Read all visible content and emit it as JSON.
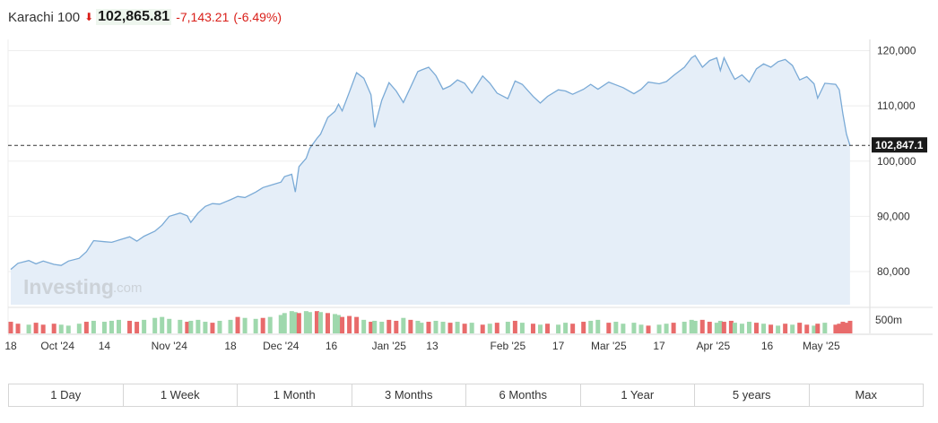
{
  "header": {
    "name": "Karachi 100",
    "price": "102,865.81",
    "change": "-7,143.21",
    "change_pct": "(-6.49%)",
    "arrow_icon": "down-arrow-icon"
  },
  "current_label": "102,847.1",
  "watermark": {
    "brand": "Investing",
    "suffix": ".com"
  },
  "volume_label": "500m",
  "tabs": [
    "1 Day",
    "1 Week",
    "1 Month",
    "3 Months",
    "6 Months",
    "1 Year",
    "5 years",
    "Max"
  ],
  "colors": {
    "line": "#7aaad6",
    "area": "#e5eef8",
    "up": "#9fd8ad",
    "down": "#e86b6b",
    "negative": "#d91e18"
  },
  "chart_data": {
    "type": "area",
    "ylim": [
      74000,
      123000
    ],
    "y_ticks": [
      80000,
      90000,
      100000,
      110000,
      120000
    ],
    "y_tick_labels": [
      "80,000",
      "90,000",
      "100,000",
      "110,000",
      "120,000"
    ],
    "current_value": 102847.1,
    "x_start": "2024-09-18",
    "x_end": "2025-05-12",
    "x_ticks": [
      {
        "date": "2024-09-18",
        "label": "18"
      },
      {
        "date": "2024-10-01",
        "label": "Oct '24"
      },
      {
        "date": "2024-10-14",
        "label": "14"
      },
      {
        "date": "2024-11-01",
        "label": "Nov '24"
      },
      {
        "date": "2024-11-18",
        "label": "18"
      },
      {
        "date": "2024-12-02",
        "label": "Dec '24"
      },
      {
        "date": "2024-12-16",
        "label": "16"
      },
      {
        "date": "2025-01-01",
        "label": "Jan '25"
      },
      {
        "date": "2025-01-13",
        "label": "13"
      },
      {
        "date": "2025-02-03",
        "label": "Feb '25"
      },
      {
        "date": "2025-02-17",
        "label": "17"
      },
      {
        "date": "2025-03-03",
        "label": "Mar '25"
      },
      {
        "date": "2025-03-17",
        "label": "17"
      },
      {
        "date": "2025-04-01",
        "label": "Apr '25"
      },
      {
        "date": "2025-04-16",
        "label": "16"
      },
      {
        "date": "2025-05-01",
        "label": "May '25"
      }
    ],
    "series": [
      {
        "values": [
          [
            "2024-09-18",
            80400
          ],
          [
            "2024-09-20",
            81500
          ],
          [
            "2024-09-23",
            82000
          ],
          [
            "2024-09-25",
            81400
          ],
          [
            "2024-09-27",
            81900
          ],
          [
            "2024-09-30",
            81300
          ],
          [
            "2024-10-02",
            81100
          ],
          [
            "2024-10-04",
            81900
          ],
          [
            "2024-10-07",
            82400
          ],
          [
            "2024-10-09",
            83600
          ],
          [
            "2024-10-11",
            85600
          ],
          [
            "2024-10-14",
            85400
          ],
          [
            "2024-10-16",
            85300
          ],
          [
            "2024-10-18",
            85700
          ],
          [
            "2024-10-21",
            86300
          ],
          [
            "2024-10-23",
            85500
          ],
          [
            "2024-10-25",
            86400
          ],
          [
            "2024-10-28",
            87300
          ],
          [
            "2024-10-30",
            88400
          ],
          [
            "2024-11-01",
            90000
          ],
          [
            "2024-11-04",
            90600
          ],
          [
            "2024-11-06",
            90100
          ],
          [
            "2024-11-07",
            88900
          ],
          [
            "2024-11-09",
            90600
          ],
          [
            "2024-11-11",
            91800
          ],
          [
            "2024-11-13",
            92300
          ],
          [
            "2024-11-15",
            92200
          ],
          [
            "2024-11-18",
            93000
          ],
          [
            "2024-11-20",
            93600
          ],
          [
            "2024-11-22",
            93400
          ],
          [
            "2024-11-25",
            94400
          ],
          [
            "2024-11-27",
            95200
          ],
          [
            "2024-11-29",
            95600
          ],
          [
            "2024-12-02",
            96200
          ],
          [
            "2024-12-03",
            97200
          ],
          [
            "2024-12-05",
            97600
          ],
          [
            "2024-12-06",
            94400
          ],
          [
            "2024-12-07",
            99000
          ],
          [
            "2024-12-09",
            100500
          ],
          [
            "2024-12-10",
            102300
          ],
          [
            "2024-12-12",
            104100
          ],
          [
            "2024-12-13",
            104900
          ],
          [
            "2024-12-15",
            107900
          ],
          [
            "2024-12-17",
            109000
          ],
          [
            "2024-12-18",
            110300
          ],
          [
            "2024-12-19",
            109100
          ],
          [
            "2024-12-21",
            112500
          ],
          [
            "2024-12-23",
            116000
          ],
          [
            "2024-12-25",
            115000
          ],
          [
            "2024-12-27",
            112000
          ],
          [
            "2024-12-28",
            106100
          ],
          [
            "2024-12-30",
            111000
          ],
          [
            "2025-01-01",
            114200
          ],
          [
            "2025-01-03",
            112700
          ],
          [
            "2025-01-05",
            110600
          ],
          [
            "2025-01-07",
            113400
          ],
          [
            "2025-01-09",
            116200
          ],
          [
            "2025-01-10",
            116500
          ],
          [
            "2025-01-12",
            117000
          ],
          [
            "2025-01-14",
            115500
          ],
          [
            "2025-01-16",
            113000
          ],
          [
            "2025-01-18",
            113600
          ],
          [
            "2025-01-20",
            114700
          ],
          [
            "2025-01-22",
            114100
          ],
          [
            "2025-01-24",
            112300
          ],
          [
            "2025-01-27",
            115400
          ],
          [
            "2025-01-29",
            114100
          ],
          [
            "2025-01-31",
            112300
          ],
          [
            "2025-02-03",
            111300
          ],
          [
            "2025-02-05",
            114500
          ],
          [
            "2025-02-07",
            113900
          ],
          [
            "2025-02-10",
            111700
          ],
          [
            "2025-02-12",
            110500
          ],
          [
            "2025-02-14",
            111700
          ],
          [
            "2025-02-17",
            112900
          ],
          [
            "2025-02-19",
            112700
          ],
          [
            "2025-02-21",
            112100
          ],
          [
            "2025-02-24",
            113000
          ],
          [
            "2025-02-26",
            113900
          ],
          [
            "2025-02-28",
            113000
          ],
          [
            "2025-03-03",
            114300
          ],
          [
            "2025-03-05",
            113800
          ],
          [
            "2025-03-07",
            113300
          ],
          [
            "2025-03-10",
            112200
          ],
          [
            "2025-03-12",
            113000
          ],
          [
            "2025-03-14",
            114300
          ],
          [
            "2025-03-17",
            114000
          ],
          [
            "2025-03-19",
            114400
          ],
          [
            "2025-03-21",
            115500
          ],
          [
            "2025-03-24",
            117000
          ],
          [
            "2025-03-26",
            118700
          ],
          [
            "2025-03-27",
            119100
          ],
          [
            "2025-03-29",
            117000
          ],
          [
            "2025-03-31",
            118200
          ],
          [
            "2025-04-02",
            118700
          ],
          [
            "2025-04-03",
            116400
          ],
          [
            "2025-04-04",
            118700
          ],
          [
            "2025-04-06",
            116000
          ],
          [
            "2025-04-07",
            114800
          ],
          [
            "2025-04-09",
            115600
          ],
          [
            "2025-04-11",
            114300
          ],
          [
            "2025-04-13",
            116700
          ],
          [
            "2025-04-15",
            117600
          ],
          [
            "2025-04-17",
            117000
          ],
          [
            "2025-04-19",
            118000
          ],
          [
            "2025-04-21",
            118400
          ],
          [
            "2025-04-23",
            117300
          ],
          [
            "2025-04-25",
            114700
          ],
          [
            "2025-04-27",
            115300
          ],
          [
            "2025-04-29",
            114000
          ],
          [
            "2025-04-30",
            111400
          ],
          [
            "2025-05-02",
            114100
          ],
          [
            "2025-05-05",
            113900
          ],
          [
            "2025-05-06",
            112900
          ],
          [
            "2025-05-07",
            108600
          ],
          [
            "2025-05-08",
            104900
          ],
          [
            "2025-05-09",
            102800
          ]
        ]
      }
    ],
    "volume": [
      [
        "2024-09-18",
        12,
        "down"
      ],
      [
        "2024-09-20",
        10,
        "down"
      ],
      [
        "2024-09-23",
        9,
        "up"
      ],
      [
        "2024-09-25",
        11,
        "down"
      ],
      [
        "2024-09-27",
        9,
        "down"
      ],
      [
        "2024-09-30",
        10,
        "down"
      ],
      [
        "2024-10-02",
        9,
        "up"
      ],
      [
        "2024-10-04",
        8,
        "up"
      ],
      [
        "2024-10-07",
        10,
        "up"
      ],
      [
        "2024-10-09",
        12,
        "down"
      ],
      [
        "2024-10-11",
        13,
        "up"
      ],
      [
        "2024-10-14",
        12,
        "up"
      ],
      [
        "2024-10-16",
        13,
        "up"
      ],
      [
        "2024-10-18",
        14,
        "up"
      ],
      [
        "2024-10-21",
        13,
        "down"
      ],
      [
        "2024-10-23",
        12,
        "down"
      ],
      [
        "2024-10-25",
        14,
        "up"
      ],
      [
        "2024-10-28",
        16,
        "up"
      ],
      [
        "2024-10-30",
        17,
        "up"
      ],
      [
        "2024-11-01",
        15,
        "up"
      ],
      [
        "2024-11-04",
        14,
        "up"
      ],
      [
        "2024-11-06",
        12,
        "down"
      ],
      [
        "2024-11-07",
        13,
        "up"
      ],
      [
        "2024-11-09",
        14,
        "up"
      ],
      [
        "2024-11-11",
        12,
        "up"
      ],
      [
        "2024-11-13",
        11,
        "down"
      ],
      [
        "2024-11-15",
        13,
        "up"
      ],
      [
        "2024-11-18",
        14,
        "up"
      ],
      [
        "2024-11-20",
        17,
        "down"
      ],
      [
        "2024-11-22",
        16,
        "up"
      ],
      [
        "2024-11-25",
        15,
        "up"
      ],
      [
        "2024-11-27",
        16,
        "down"
      ],
      [
        "2024-11-29",
        17,
        "up"
      ],
      [
        "2024-12-02",
        19,
        "up"
      ],
      [
        "2024-12-03",
        21,
        "up"
      ],
      [
        "2024-12-05",
        23,
        "up"
      ],
      [
        "2024-12-06",
        22,
        "up"
      ],
      [
        "2024-12-07",
        21,
        "down"
      ],
      [
        "2024-12-09",
        23,
        "up"
      ],
      [
        "2024-12-10",
        22,
        "up"
      ],
      [
        "2024-12-12",
        23,
        "down"
      ],
      [
        "2024-12-13",
        22,
        "up"
      ],
      [
        "2024-12-15",
        21,
        "down"
      ],
      [
        "2024-12-17",
        20,
        "up"
      ],
      [
        "2024-12-18",
        19,
        "up"
      ],
      [
        "2024-12-19",
        17,
        "down"
      ],
      [
        "2024-12-21",
        18,
        "down"
      ],
      [
        "2024-12-23",
        17,
        "down"
      ],
      [
        "2024-12-25",
        14,
        "up"
      ],
      [
        "2024-12-27",
        12,
        "down"
      ],
      [
        "2024-12-28",
        13,
        "up"
      ],
      [
        "2024-12-30",
        12,
        "up"
      ],
      [
        "2025-01-01",
        14,
        "down"
      ],
      [
        "2025-01-03",
        13,
        "down"
      ],
      [
        "2025-01-05",
        16,
        "up"
      ],
      [
        "2025-01-07",
        14,
        "down"
      ],
      [
        "2025-01-09",
        13,
        "up"
      ],
      [
        "2025-01-10",
        11,
        "up"
      ],
      [
        "2025-01-12",
        12,
        "down"
      ],
      [
        "2025-01-14",
        13,
        "up"
      ],
      [
        "2025-01-16",
        12,
        "up"
      ],
      [
        "2025-01-18",
        11,
        "down"
      ],
      [
        "2025-01-20",
        12,
        "up"
      ],
      [
        "2025-01-22",
        10,
        "down"
      ],
      [
        "2025-01-24",
        11,
        "up"
      ],
      [
        "2025-01-27",
        9,
        "down"
      ],
      [
        "2025-01-29",
        10,
        "up"
      ],
      [
        "2025-01-31",
        11,
        "down"
      ],
      [
        "2025-02-03",
        12,
        "up"
      ],
      [
        "2025-02-05",
        13,
        "down"
      ],
      [
        "2025-02-07",
        11,
        "up"
      ],
      [
        "2025-02-10",
        10,
        "down"
      ],
      [
        "2025-02-12",
        9,
        "up"
      ],
      [
        "2025-02-14",
        10,
        "down"
      ],
      [
        "2025-02-17",
        9,
        "up"
      ],
      [
        "2025-02-19",
        11,
        "up"
      ],
      [
        "2025-02-21",
        10,
        "down"
      ],
      [
        "2025-02-24",
        12,
        "down"
      ],
      [
        "2025-02-26",
        13,
        "up"
      ],
      [
        "2025-02-28",
        14,
        "up"
      ],
      [
        "2025-03-03",
        11,
        "down"
      ],
      [
        "2025-03-05",
        12,
        "up"
      ],
      [
        "2025-03-07",
        10,
        "up"
      ],
      [
        "2025-03-10",
        11,
        "up"
      ],
      [
        "2025-03-12",
        9,
        "up"
      ],
      [
        "2025-03-14",
        8,
        "down"
      ],
      [
        "2025-03-17",
        9,
        "up"
      ],
      [
        "2025-03-19",
        10,
        "up"
      ],
      [
        "2025-03-21",
        11,
        "down"
      ],
      [
        "2025-03-24",
        12,
        "up"
      ],
      [
        "2025-03-26",
        14,
        "up"
      ],
      [
        "2025-03-27",
        13,
        "up"
      ],
      [
        "2025-03-29",
        14,
        "down"
      ],
      [
        "2025-03-31",
        12,
        "down"
      ],
      [
        "2025-04-02",
        11,
        "up"
      ],
      [
        "2025-04-03",
        13,
        "up"
      ],
      [
        "2025-04-04",
        12,
        "down"
      ],
      [
        "2025-04-06",
        13,
        "down"
      ],
      [
        "2025-04-07",
        11,
        "up"
      ],
      [
        "2025-04-09",
        10,
        "up"
      ],
      [
        "2025-04-11",
        12,
        "up"
      ],
      [
        "2025-04-13",
        11,
        "down"
      ],
      [
        "2025-04-15",
        10,
        "up"
      ],
      [
        "2025-04-17",
        9,
        "down"
      ],
      [
        "2025-04-19",
        8,
        "up"
      ],
      [
        "2025-04-21",
        10,
        "down"
      ],
      [
        "2025-04-23",
        9,
        "up"
      ],
      [
        "2025-04-25",
        11,
        "down"
      ],
      [
        "2025-04-27",
        9,
        "down"
      ],
      [
        "2025-04-29",
        8,
        "up"
      ],
      [
        "2025-04-30",
        10,
        "down"
      ],
      [
        "2025-05-02",
        11,
        "up"
      ],
      [
        "2025-05-05",
        9,
        "down"
      ],
      [
        "2025-05-06",
        10,
        "down"
      ],
      [
        "2025-05-07",
        12,
        "down"
      ],
      [
        "2025-05-08",
        11,
        "down"
      ],
      [
        "2025-05-09",
        13,
        "down"
      ]
    ]
  }
}
